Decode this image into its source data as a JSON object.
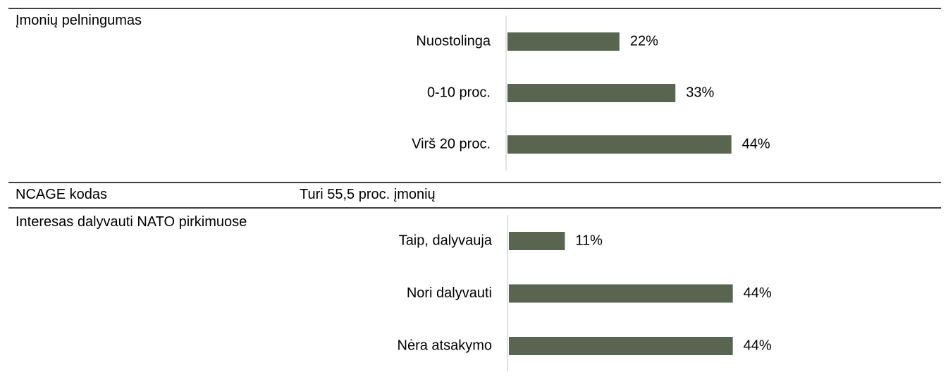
{
  "rows": [
    {
      "label": "Įmonių pelningumas",
      "chart": {
        "type": "bar",
        "categories": [
          "Nuostolinga",
          "0-10 proc.",
          "Virš 20 proc."
        ],
        "values": [
          22,
          33,
          44
        ],
        "value_labels": [
          "22%",
          "33%",
          "44%"
        ],
        "color": "#5a6551"
      }
    },
    {
      "label": "NCAGE kodas",
      "text": "Turi 55,5 proc. įmonių"
    },
    {
      "label": "Interesas dalyvauti NATO pirkimuose",
      "chart": {
        "type": "bar",
        "categories": [
          "Taip, dalyvauja",
          "Nori dalyvauti",
          "Nėra atsakymo"
        ],
        "values": [
          11,
          44,
          44
        ],
        "value_labels": [
          "11%",
          "44%",
          "44%"
        ],
        "color": "#5a6551"
      }
    }
  ]
}
